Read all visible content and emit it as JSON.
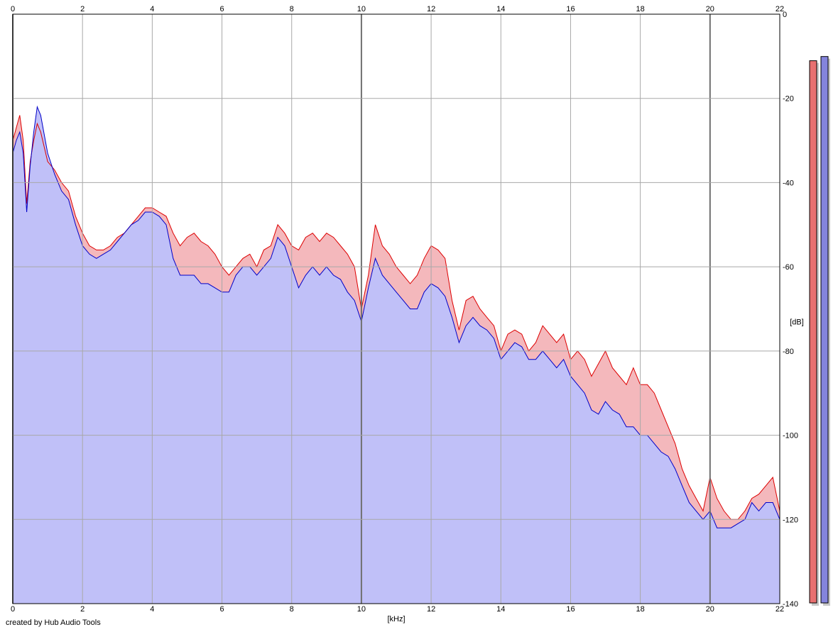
{
  "credit": "created by Hub Audio Tools",
  "colors": {
    "left_line": "#dd0000",
    "left_fill": "#f4b8bc",
    "right_line": "#0000c8",
    "right_fill": "#c0c0f8",
    "grid": "#a8a8a8",
    "grid_major": "#707070",
    "left_meter": "#e87070",
    "right_meter": "#8484dc"
  },
  "chart_data": {
    "type": "area",
    "title": "",
    "xlabel": "[kHz]",
    "ylabel": "[dB]",
    "xlim": [
      0,
      22
    ],
    "ylim": [
      -140,
      0
    ],
    "x_ticks": [
      "0",
      "2",
      "4",
      "6",
      "8",
      "10",
      "12",
      "14",
      "16",
      "18",
      "20",
      "22"
    ],
    "y_ticks": [
      "0",
      "-20",
      "-40",
      "-60",
      "-80",
      "-100",
      "-120",
      "-140"
    ],
    "grid": true,
    "series": [
      {
        "color": "#dd0000",
        "x": [
          0,
          0.1,
          0.2,
          0.3,
          0.4,
          0.5,
          0.6,
          0.7,
          0.8,
          1.0,
          1.2,
          1.4,
          1.6,
          1.8,
          2.0,
          2.2,
          2.4,
          2.6,
          2.8,
          3.0,
          3.2,
          3.4,
          3.6,
          3.8,
          4.0,
          4.2,
          4.4,
          4.6,
          4.8,
          5.0,
          5.2,
          5.4,
          5.6,
          5.8,
          6.0,
          6.2,
          6.4,
          6.6,
          6.8,
          7.0,
          7.2,
          7.4,
          7.6,
          7.8,
          8.0,
          8.2,
          8.4,
          8.6,
          8.8,
          9.0,
          9.2,
          9.4,
          9.6,
          9.8,
          10.0,
          10.2,
          10.4,
          10.6,
          10.8,
          11.0,
          11.2,
          11.4,
          11.6,
          11.8,
          12.0,
          12.2,
          12.4,
          12.6,
          12.8,
          13.0,
          13.2,
          13.4,
          13.6,
          13.8,
          14.0,
          14.2,
          14.4,
          14.6,
          14.8,
          15.0,
          15.2,
          15.4,
          15.6,
          15.8,
          16.0,
          16.2,
          16.4,
          16.6,
          16.8,
          17.0,
          17.2,
          17.4,
          17.6,
          17.8,
          18.0,
          18.2,
          18.4,
          18.6,
          18.8,
          19.0,
          19.2,
          19.4,
          19.6,
          19.8,
          20.0,
          20.2,
          20.4,
          20.6,
          20.8,
          21.0,
          21.2,
          21.4,
          21.6,
          21.8,
          22.0
        ],
        "values": [
          -30,
          -27,
          -24,
          -30,
          -45,
          -35,
          -30,
          -26,
          -28,
          -35,
          -37,
          -40,
          -42,
          -48,
          -52,
          -55,
          -56,
          -56,
          -55,
          -53,
          -52,
          -50,
          -48,
          -46,
          -46,
          -47,
          -48,
          -52,
          -55,
          -53,
          -52,
          -54,
          -55,
          -57,
          -60,
          -62,
          -60,
          -58,
          -57,
          -60,
          -56,
          -55,
          -50,
          -52,
          -55,
          -56,
          -53,
          -52,
          -54,
          -52,
          -53,
          -55,
          -57,
          -60,
          -70,
          -62,
          -50,
          -55,
          -57,
          -60,
          -62,
          -64,
          -62,
          -58,
          -55,
          -56,
          -58,
          -68,
          -75,
          -68,
          -67,
          -70,
          -72,
          -74,
          -80,
          -76,
          -75,
          -76,
          -80,
          -78,
          -74,
          -76,
          -78,
          -76,
          -82,
          -80,
          -82,
          -86,
          -83,
          -80,
          -84,
          -86,
          -88,
          -84,
          -88,
          -88,
          -90,
          -94,
          -98,
          -102,
          -108,
          -112,
          -115,
          -118,
          -110,
          -115,
          -118,
          -120,
          -120,
          -118,
          -115,
          -114,
          -112,
          -110,
          -118
        ]
      },
      {
        "color": "#0000c8",
        "x": [
          0,
          0.1,
          0.2,
          0.3,
          0.4,
          0.5,
          0.6,
          0.7,
          0.8,
          1.0,
          1.2,
          1.4,
          1.6,
          1.8,
          2.0,
          2.2,
          2.4,
          2.6,
          2.8,
          3.0,
          3.2,
          3.4,
          3.6,
          3.8,
          4.0,
          4.2,
          4.4,
          4.6,
          4.8,
          5.0,
          5.2,
          5.4,
          5.6,
          5.8,
          6.0,
          6.2,
          6.4,
          6.6,
          6.8,
          7.0,
          7.2,
          7.4,
          7.6,
          7.8,
          8.0,
          8.2,
          8.4,
          8.6,
          8.8,
          9.0,
          9.2,
          9.4,
          9.6,
          9.8,
          10.0,
          10.2,
          10.4,
          10.6,
          10.8,
          11.0,
          11.2,
          11.4,
          11.6,
          11.8,
          12.0,
          12.2,
          12.4,
          12.6,
          12.8,
          13.0,
          13.2,
          13.4,
          13.6,
          13.8,
          14.0,
          14.2,
          14.4,
          14.6,
          14.8,
          15.0,
          15.2,
          15.4,
          15.6,
          15.8,
          16.0,
          16.2,
          16.4,
          16.6,
          16.8,
          17.0,
          17.2,
          17.4,
          17.6,
          17.8,
          18.0,
          18.2,
          18.4,
          18.6,
          18.8,
          19.0,
          19.2,
          19.4,
          19.6,
          19.8,
          20.0,
          20.2,
          20.4,
          20.6,
          20.8,
          21.0,
          21.2,
          21.4,
          21.6,
          21.8,
          22.0
        ],
        "values": [
          -33,
          -30,
          -28,
          -33,
          -47,
          -36,
          -28,
          -22,
          -24,
          -33,
          -38,
          -42,
          -44,
          -50,
          -55,
          -57,
          -58,
          -57,
          -56,
          -54,
          -52,
          -50,
          -49,
          -47,
          -47,
          -48,
          -50,
          -58,
          -62,
          -62,
          -62,
          -64,
          -64,
          -65,
          -66,
          -66,
          -62,
          -60,
          -60,
          -62,
          -60,
          -58,
          -53,
          -55,
          -60,
          -65,
          -62,
          -60,
          -62,
          -60,
          -62,
          -63,
          -66,
          -68,
          -73,
          -65,
          -58,
          -62,
          -64,
          -66,
          -68,
          -70,
          -70,
          -66,
          -64,
          -65,
          -67,
          -72,
          -78,
          -74,
          -72,
          -74,
          -75,
          -77,
          -82,
          -80,
          -78,
          -79,
          -82,
          -82,
          -80,
          -82,
          -84,
          -82,
          -86,
          -88,
          -90,
          -94,
          -95,
          -92,
          -94,
          -95,
          -98,
          -98,
          -100,
          -100,
          -102,
          -104,
          -105,
          -108,
          -112,
          -116,
          -118,
          -120,
          -118,
          -122,
          -122,
          -122,
          -121,
          -120,
          -116,
          -118,
          -116,
          -116,
          -120
        ]
      }
    ],
    "meters": [
      {
        "color": "#e87070",
        "value": -6
      },
      {
        "color": "#8484dc",
        "value": -5
      }
    ]
  }
}
